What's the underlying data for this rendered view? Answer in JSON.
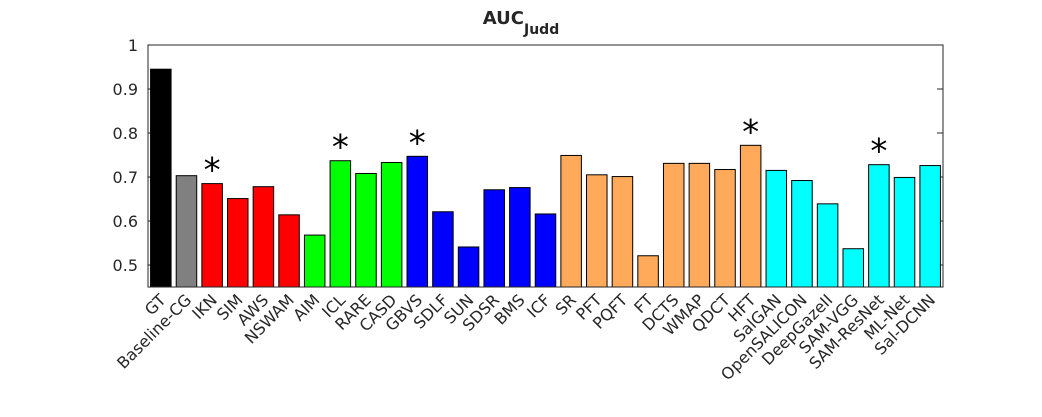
{
  "chart_data": {
    "type": "bar",
    "title": "AUC",
    "title_subscript": "Judd",
    "categories": [
      "GT",
      "Baseline-CG",
      "IKN",
      "SIM",
      "AWS",
      "NSWAM",
      "AIM",
      "ICL",
      "RARE",
      "CASD",
      "GBVS",
      "SDLF",
      "SUN",
      "SDSR",
      "BMS",
      "ICF",
      "SR",
      "PFT",
      "PQFT",
      "FT",
      "DCTS",
      "WMAP",
      "QDCT",
      "HFT",
      "SalGAN",
      "OpenSALICON",
      "DeepGazeII",
      "SAM-VGG",
      "SAM-ResNet",
      "ML-Net",
      "Sal-DCNN"
    ],
    "values": [
      0.945,
      0.703,
      0.685,
      0.651,
      0.678,
      0.614,
      0.568,
      0.737,
      0.708,
      0.733,
      0.747,
      0.621,
      0.541,
      0.671,
      0.676,
      0.616,
      0.749,
      0.705,
      0.701,
      0.521,
      0.731,
      0.731,
      0.717,
      0.772,
      0.715,
      0.692,
      0.639,
      0.537,
      0.728,
      0.699,
      0.726
    ],
    "colors": [
      "#000000",
      "#808080",
      "#ff0000",
      "#ff0000",
      "#ff0000",
      "#ff0000",
      "#00ff00",
      "#00ff00",
      "#00ff00",
      "#00ff00",
      "#0000ff",
      "#0000ff",
      "#0000ff",
      "#0000ff",
      "#0000ff",
      "#0000ff",
      "#ffaa5a",
      "#ffaa5a",
      "#ffaa5a",
      "#ffaa5a",
      "#ffaa5a",
      "#ffaa5a",
      "#ffaa5a",
      "#ffaa5a",
      "#00ffff",
      "#00ffff",
      "#00ffff",
      "#00ffff",
      "#00ffff",
      "#00ffff",
      "#00ffff"
    ],
    "value_markers": [
      null,
      null,
      "*",
      null,
      null,
      null,
      null,
      "*",
      null,
      null,
      "*",
      null,
      null,
      null,
      null,
      null,
      null,
      null,
      null,
      null,
      null,
      null,
      null,
      "*",
      null,
      null,
      null,
      null,
      "*",
      null,
      null
    ],
    "ylim": [
      0.45,
      1
    ],
    "yticks": [
      0.5,
      0.6,
      0.7,
      0.8,
      0.9,
      1
    ],
    "grid": false
  }
}
